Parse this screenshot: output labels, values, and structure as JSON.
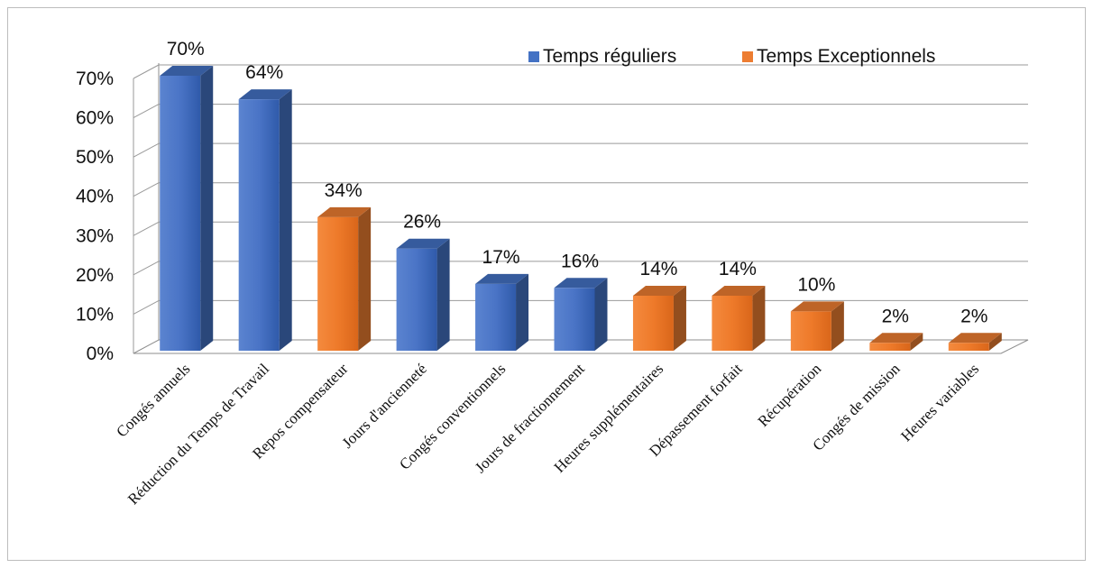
{
  "chart_data": {
    "type": "bar",
    "categories": [
      "Congés annuels",
      "Réduction du Temps de Travail",
      "Repos compensateur",
      "Jours d'ancienneté",
      "Congés conventionnels",
      "Jours de fractionnement",
      "Heures supplémentaires",
      "Dépassement forfait",
      "Récupération",
      "Congés de mission",
      "Heures variables"
    ],
    "values": [
      70,
      64,
      34,
      26,
      17,
      16,
      14,
      14,
      10,
      2,
      2
    ],
    "value_labels": [
      "70%",
      "64%",
      "34%",
      "26%",
      "17%",
      "16%",
      "14%",
      "14%",
      "10%",
      "2%",
      "2%"
    ],
    "groups": [
      "regular",
      "regular",
      "exceptional",
      "regular",
      "regular",
      "regular",
      "exceptional",
      "exceptional",
      "exceptional",
      "exceptional",
      "exceptional"
    ],
    "series": [
      {
        "key": "regular",
        "name": "Temps réguliers",
        "color": "#4472C4"
      },
      {
        "key": "exceptional",
        "name": "Temps Exceptionnels",
        "color": "#ED7D31"
      }
    ],
    "yticks": [
      "0%",
      "10%",
      "20%",
      "30%",
      "40%",
      "50%",
      "60%",
      "70%"
    ],
    "ylim": [
      0,
      70
    ],
    "unit": "%",
    "grid": true,
    "legend_position": "top-right",
    "style": "3d-column"
  }
}
